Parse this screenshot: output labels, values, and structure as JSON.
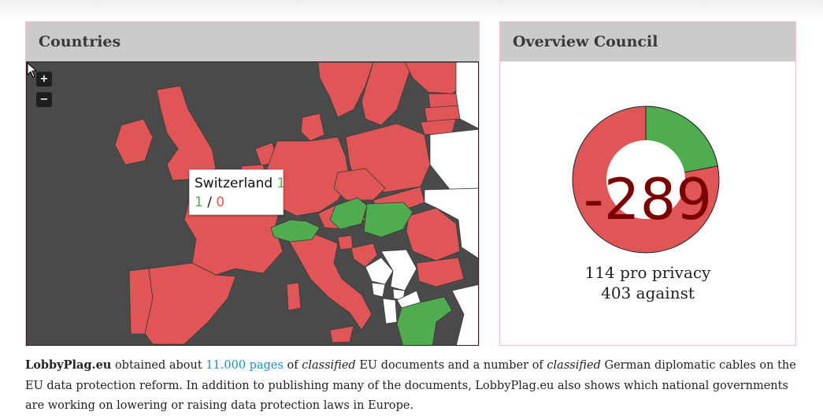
{
  "countries_panel": {
    "title": "Countries",
    "zoom_in_label": "+",
    "zoom_out_label": "−",
    "tooltip": {
      "country": "Switzerland",
      "total": "1",
      "pro": "1",
      "separator": "/",
      "against": "0"
    },
    "colors": {
      "against": "#e05656",
      "pro": "#4fad4f",
      "neutral": "#ffffff",
      "sea": "#4a4a4a"
    }
  },
  "council_panel": {
    "title": "Overview Council",
    "net_value": "-289",
    "pro_line": "114 pro privacy",
    "against_line": "403 against",
    "pro_count": 114,
    "against_count": 403
  },
  "description": {
    "brand": "LobbyPlag.eu",
    "part1": "obtained about",
    "link_text": "11.000 pages",
    "part2": "of",
    "classified_1": "classified",
    "part3": "EU documents and a number of",
    "classified_2": "classified",
    "part4": "German diplomatic cables on the EU data protection reform. In addition to publishing many of the documents, LobbyPlag.eu also shows which national governments are working on lowering or raising data protection laws in Europe."
  }
}
